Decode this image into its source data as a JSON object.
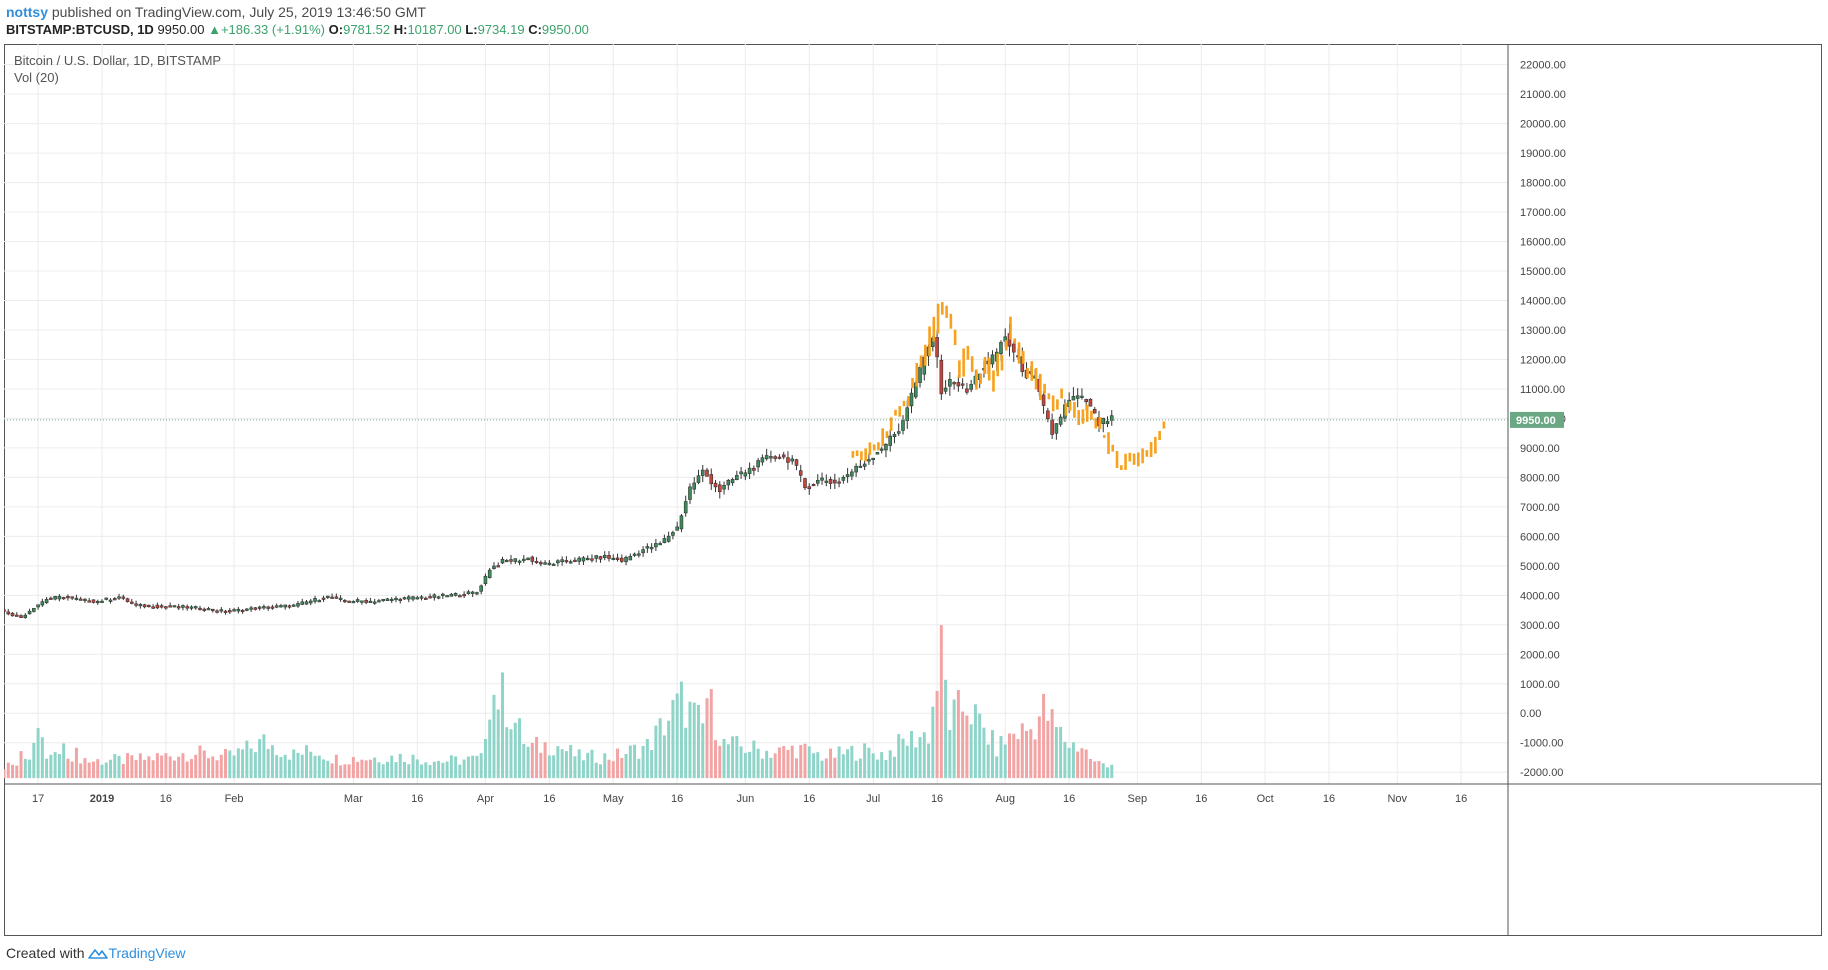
{
  "header": {
    "publisher": "nottsy",
    "published_text": "published on TradingView.com, July 25, 2019 13:46:50 GMT"
  },
  "quote": {
    "symbol": "BITSTAMP:BTCUSD, 1D",
    "last": "9950.00",
    "change": "+186.33 (+1.91%)",
    "o_label": "O:",
    "o": "9781.52",
    "h_label": "H:",
    "h": "10187.00",
    "l_label": "L:",
    "l": "9734.19",
    "c_label": "C:",
    "c": "9950.00"
  },
  "legend": {
    "title": "Bitcoin / U.S. Dollar, 1D, BITSTAMP",
    "volume": "Vol (20)"
  },
  "footer": {
    "created_with": "Created with",
    "brand": "TradingView"
  },
  "colors": {
    "up": "#3d8c5c",
    "down": "#c8443a",
    "overlay": "#f7a11c",
    "vol_up": "#8fd4c8",
    "vol_down": "#f2a3a3",
    "price_line": "#6aa883",
    "badge": "#6aa883"
  },
  "chart_data": {
    "type": "candlestick",
    "title": "Bitcoin / U.S. Dollar, 1D, BITSTAMP",
    "ylim": [
      -2400,
      22700
    ],
    "y_ticks": [
      "22000.00",
      "21000.00",
      "20000.00",
      "19000.00",
      "18000.00",
      "17000.00",
      "16000.00",
      "15000.00",
      "14000.00",
      "13000.00",
      "12000.00",
      "11000.00",
      "10000.00",
      "9000.00",
      "8000.00",
      "7000.00",
      "6000.00",
      "5000.00",
      "4000.00",
      "3000.00",
      "2000.00",
      "1000.00",
      "0.00",
      "-1000.00",
      "-2000.00"
    ],
    "last_price": 9950,
    "last_price_label": "9950.00",
    "x_ticks": [
      "17",
      "2019",
      "16",
      "Feb",
      "Mar",
      "16",
      "Apr",
      "16",
      "May",
      "16",
      "Jun",
      "16",
      "Jul",
      "16",
      "Aug",
      "16",
      "Sep",
      "16",
      "Oct",
      "16",
      "Nov",
      "16"
    ],
    "x_tick_days": [
      -15,
      0,
      15,
      31,
      59,
      74,
      90,
      105,
      120,
      135,
      151,
      166,
      181,
      196,
      212,
      227,
      243,
      258,
      273,
      288,
      304,
      319
    ],
    "x_start_day": -23,
    "x_end_day": 330,
    "price_anchors": [
      [
        -23,
        3500
      ],
      [
        -18,
        3250
      ],
      [
        -15,
        3600
      ],
      [
        -12,
        3880
      ],
      [
        -8,
        3950
      ],
      [
        -3,
        3820
      ],
      [
        0,
        3800
      ],
      [
        5,
        3950
      ],
      [
        9,
        3650
      ],
      [
        15,
        3620
      ],
      [
        20,
        3600
      ],
      [
        25,
        3550
      ],
      [
        30,
        3450
      ],
      [
        33,
        3500
      ],
      [
        40,
        3600
      ],
      [
        46,
        3650
      ],
      [
        51,
        3850
      ],
      [
        54,
        3950
      ],
      [
        58,
        3820
      ],
      [
        64,
        3800
      ],
      [
        70,
        3880
      ],
      [
        80,
        3970
      ],
      [
        89,
        4100
      ],
      [
        92,
        4900
      ],
      [
        95,
        5150
      ],
      [
        101,
        5250
      ],
      [
        105,
        5050
      ],
      [
        112,
        5200
      ],
      [
        119,
        5300
      ],
      [
        123,
        5180
      ],
      [
        128,
        5550
      ],
      [
        132,
        5750
      ],
      [
        136,
        6300
      ],
      [
        139,
        7650
      ],
      [
        142,
        8200
      ],
      [
        146,
        7550
      ],
      [
        150,
        8050
      ],
      [
        154,
        8350
      ],
      [
        158,
        8750
      ],
      [
        163,
        8600
      ],
      [
        166,
        7650
      ],
      [
        170,
        7950
      ],
      [
        173,
        7800
      ],
      [
        175,
        8000
      ],
      [
        179,
        8400
      ],
      [
        182,
        8750
      ],
      [
        186,
        9300
      ],
      [
        188,
        9600
      ],
      [
        191,
        10800
      ],
      [
        193,
        11600
      ],
      [
        196,
        12800
      ],
      [
        198,
        11000
      ],
      [
        201,
        11300
      ],
      [
        204,
        10900
      ],
      [
        207,
        11600
      ],
      [
        210,
        12000
      ],
      [
        213,
        12800
      ],
      [
        215,
        12200
      ],
      [
        218,
        11500
      ],
      [
        220,
        11300
      ],
      [
        222,
        10300
      ],
      [
        224,
        9500
      ],
      [
        227,
        10400
      ],
      [
        229,
        10700
      ],
      [
        232,
        10600
      ],
      [
        235,
        9800
      ],
      [
        237,
        9950
      ]
    ],
    "orange_anchors": [
      [
        176,
        8750
      ],
      [
        180,
        8800
      ],
      [
        182,
        9100
      ],
      [
        184,
        9500
      ],
      [
        186,
        10100
      ],
      [
        189,
        10600
      ],
      [
        191,
        11600
      ],
      [
        193,
        12300
      ],
      [
        195,
        13000
      ],
      [
        197,
        13600
      ],
      [
        199,
        13400
      ],
      [
        201,
        11600
      ],
      [
        203,
        12300
      ],
      [
        205,
        11200
      ],
      [
        207,
        11700
      ],
      [
        209,
        11400
      ],
      [
        211,
        12100
      ],
      [
        213,
        12900
      ],
      [
        215,
        12300
      ],
      [
        217,
        11700
      ],
      [
        219,
        11300
      ],
      [
        221,
        10900
      ],
      [
        223,
        10400
      ],
      [
        225,
        10700
      ],
      [
        227,
        10300
      ],
      [
        229,
        10100
      ],
      [
        231,
        10200
      ],
      [
        233,
        9900
      ],
      [
        235,
        9400
      ],
      [
        237,
        8900
      ],
      [
        239,
        8400
      ],
      [
        241,
        8600
      ],
      [
        243,
        8500
      ],
      [
        245,
        8800
      ],
      [
        247,
        9200
      ],
      [
        249,
        9700
      ]
    ],
    "volume_scale": "-2400 baseline, values in price units",
    "volume_base": -2200,
    "volume_peaks": [
      [
        -23,
        600
      ],
      [
        -20,
        900
      ],
      [
        -17,
        1300
      ],
      [
        -15,
        2100
      ],
      [
        -13,
        1000
      ],
      [
        -8,
        1300
      ],
      [
        -3,
        800
      ],
      [
        10,
        900
      ],
      [
        20,
        1200
      ],
      [
        30,
        1000
      ],
      [
        38,
        1700
      ],
      [
        45,
        1100
      ],
      [
        50,
        1300
      ],
      [
        55,
        900
      ],
      [
        70,
        1000
      ],
      [
        80,
        800
      ],
      [
        89,
        900
      ],
      [
        91,
        4000
      ],
      [
        94,
        3800
      ],
      [
        100,
        1400
      ],
      [
        106,
        1600
      ],
      [
        112,
        1000
      ],
      [
        120,
        1000
      ],
      [
        128,
        1500
      ],
      [
        136,
        3600
      ],
      [
        138,
        3100
      ],
      [
        141,
        2400
      ],
      [
        142,
        3800
      ],
      [
        146,
        1600
      ],
      [
        152,
        1400
      ],
      [
        158,
        1200
      ],
      [
        163,
        1400
      ],
      [
        170,
        1000
      ],
      [
        178,
        1300
      ],
      [
        184,
        1100
      ],
      [
        188,
        1700
      ],
      [
        194,
        2100
      ],
      [
        197,
        5700
      ],
      [
        199,
        2700
      ],
      [
        203,
        3500
      ],
      [
        206,
        2500
      ],
      [
        210,
        1400
      ],
      [
        214,
        2100
      ],
      [
        218,
        2300
      ],
      [
        221,
        3200
      ],
      [
        224,
        2300
      ],
      [
        227,
        1600
      ],
      [
        230,
        1500
      ],
      [
        233,
        700
      ]
    ]
  }
}
